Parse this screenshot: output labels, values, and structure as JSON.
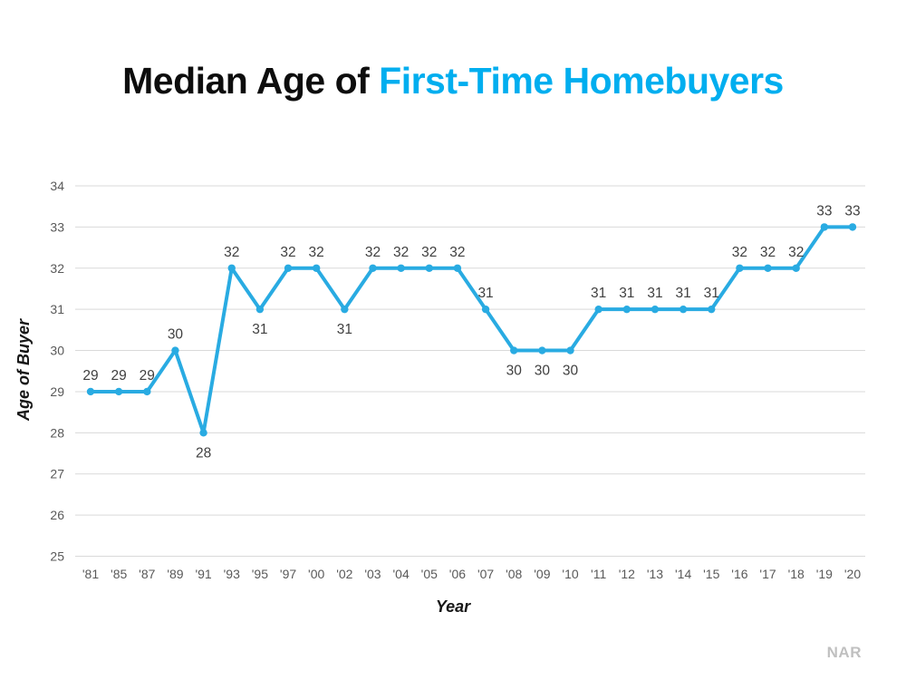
{
  "title": {
    "black": "Median Age of ",
    "blue": "First-Time Homebuyers"
  },
  "footer": {
    "source": "NAR"
  },
  "colors": {
    "accent": "#00AEEF",
    "line": "#29ABE2",
    "grid": "#D9D9D9",
    "tick_text": "#595959",
    "data_label_text": "#404040"
  },
  "chart_data": {
    "type": "line",
    "title": "Median Age of First-Time Homebuyers",
    "xlabel": "Year",
    "ylabel": "Age of Buyer",
    "categories": [
      "'81",
      "'85",
      "'87",
      "'89",
      "'91",
      "'93",
      "'95",
      "'97",
      "'00",
      "'02",
      "'03",
      "'04",
      "'05",
      "'06",
      "'07",
      "'08",
      "'09",
      "'10",
      "'11",
      "'12",
      "'13",
      "'14",
      "'15",
      "'16",
      "'17",
      "'18",
      "'19",
      "'20"
    ],
    "values": [
      29,
      29,
      29,
      30,
      28,
      32,
      31,
      32,
      32,
      31,
      32,
      32,
      32,
      32,
      31,
      30,
      30,
      30,
      31,
      31,
      31,
      31,
      31,
      32,
      32,
      32,
      33,
      33
    ],
    "ylim": [
      25,
      34
    ],
    "y_tick_step": 1,
    "grid": true,
    "legend": false,
    "data_labels": true,
    "labels_below_indices": [
      4,
      6,
      9,
      15,
      16,
      17
    ]
  }
}
